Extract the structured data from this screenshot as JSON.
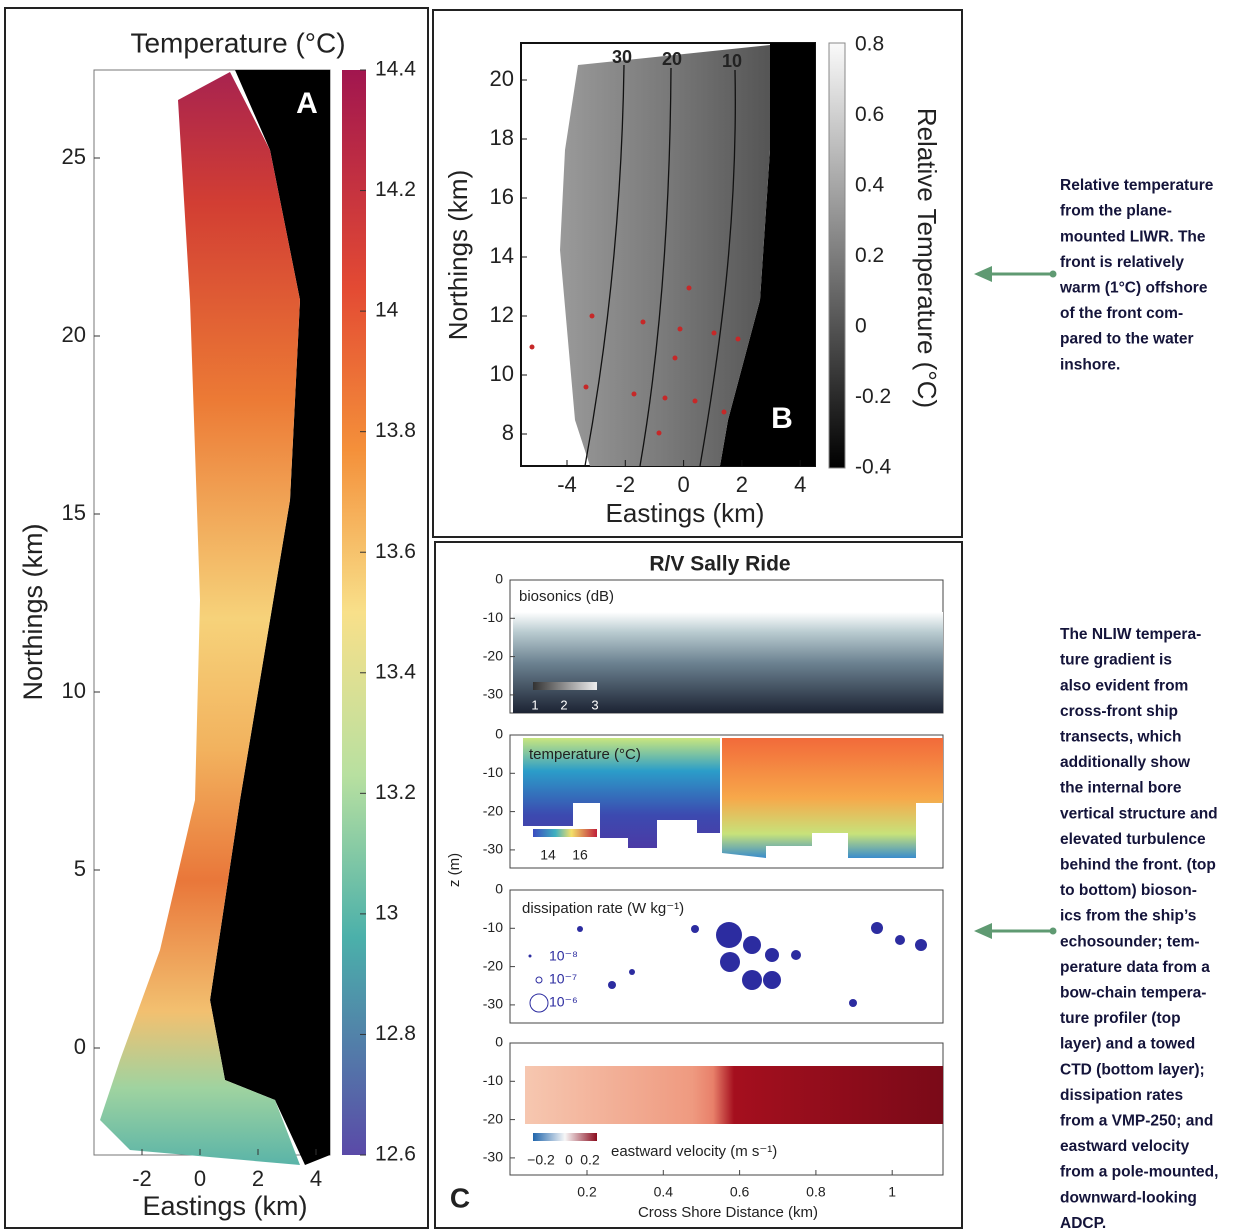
{
  "panel_a": {
    "title": "Temperature (°C)",
    "label": "A",
    "y_label": "Northings (km)",
    "x_label": "Eastings (km)",
    "yticks": [
      25,
      20,
      15,
      10,
      5,
      0
    ],
    "xticks": [
      -2,
      0,
      2,
      4
    ],
    "colorbar_ticks": [
      14.4,
      14.2,
      14,
      13.8,
      13.6,
      13.4,
      13.2,
      13,
      12.8,
      12.6
    ]
  },
  "panel_b": {
    "label": "B",
    "y_label": "Northings (km)",
    "x_label": "Eastings (km)",
    "colorbar_label": "Relative Temperature (°C)",
    "yticks": [
      20,
      18,
      16,
      14,
      12,
      10,
      8
    ],
    "xticks": [
      -4,
      -2,
      0,
      2,
      4
    ],
    "colorbar_ticks": [
      0.8,
      0.6,
      0.4,
      0.2,
      0,
      -0.2,
      -0.4
    ],
    "contour_labels": [
      30,
      20,
      10
    ]
  },
  "panel_c": {
    "title": "R/V Sally Ride",
    "label": "C",
    "y_label": "z (m)",
    "x_label": "Cross Shore Distance (km)",
    "xticks": [
      0.2,
      0.4,
      0.6,
      0.8,
      1
    ],
    "subplots": [
      {
        "label": "biosonics (dB)",
        "yticks": [
          0,
          -10,
          -20,
          -30
        ],
        "colorbar_ticks": [
          1,
          2,
          3
        ]
      },
      {
        "label": "temperature  (°C)",
        "yticks": [
          0,
          -10,
          -20,
          -30
        ],
        "colorbar_ticks": [
          14,
          16
        ]
      },
      {
        "label": "dissipation rate (W kg⁻¹)",
        "yticks": [
          0,
          -10,
          -20,
          -30
        ],
        "legend": [
          {
            "value": 1e-08,
            "label": "10⁻⁸"
          },
          {
            "value": 1e-07,
            "label": "10⁻⁷"
          },
          {
            "value": 1e-06,
            "label": "10⁻⁶"
          }
        ]
      },
      {
        "label": "eastward velocity (m s⁻¹)",
        "yticks": [
          0,
          -10,
          -20,
          -30
        ],
        "colorbar_ticks": [
          {
            "value": -0.2,
            "label": "−0.2"
          },
          0,
          0.2
        ]
      }
    ]
  },
  "annotations": [
    {
      "lines": [
        "Relative temperature",
        "from the plane-",
        "mounted LIWR. The",
        "front is relatively",
        "warm (1°C) offshore",
        "of the front com-",
        "pared to the water",
        "inshore."
      ]
    },
    {
      "lines": [
        "The NLIW tempera-",
        "ture gradient is",
        "also evident from",
        "cross-front ship",
        "transects, which",
        "additionally show",
        "the internal bore",
        "vertical structure and",
        "elevated turbulence",
        "behind the front. (top",
        "to bottom) bioson-",
        "ics from the ship’s",
        "echosounder; tem-",
        "perature data from a",
        "bow-chain tempera-",
        "ture profiler (top",
        "layer) and a towed",
        "CTD (bottom layer);",
        "dissipation rates",
        "from a VMP-250; and",
        "eastward velocity",
        "from a pole-mounted,",
        "downward-looking",
        "ADCP."
      ]
    }
  ]
}
